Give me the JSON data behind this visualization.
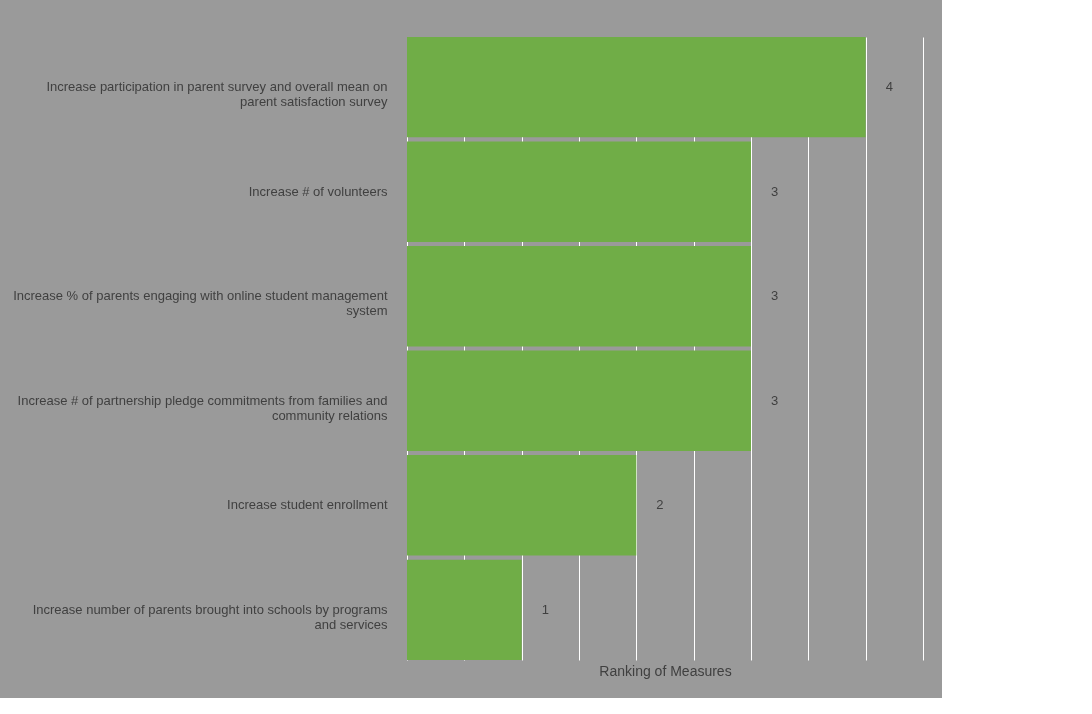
{
  "chart_data": {
    "type": "bar",
    "orientation": "horizontal",
    "xlabel": "Ranking of Measures",
    "categories": [
      "Increase participation in parent survey and overall mean on parent satisfaction survey",
      "Increase # of volunteers",
      "Increase % of parents engaging with online student management system",
      "Increase # of partnership pledge commitments from families and community relations",
      "Increase student enrollment",
      "Increase number of parents brought into schools by programs and services"
    ],
    "values": [
      4,
      3,
      3,
      3,
      2,
      1
    ],
    "color": "#70ad47",
    "xlim": [
      0,
      4.5
    ],
    "xticks": [
      {
        "value": 0,
        "label": null
      },
      {
        "value": 0.5,
        "label": null
      },
      {
        "value": 1,
        "label": null
      },
      {
        "value": 1.5,
        "label": null
      },
      {
        "value": 2,
        "label": null
      },
      {
        "value": 2.5,
        "label": null
      },
      {
        "value": 3,
        "label": null
      },
      {
        "value": 3.5,
        "label": null
      },
      {
        "value": 4,
        "label": null
      },
      {
        "value": 4.5,
        "label": null
      }
    ],
    "tick_labels": "y",
    "grid": "x",
    "data_labels": true
  }
}
